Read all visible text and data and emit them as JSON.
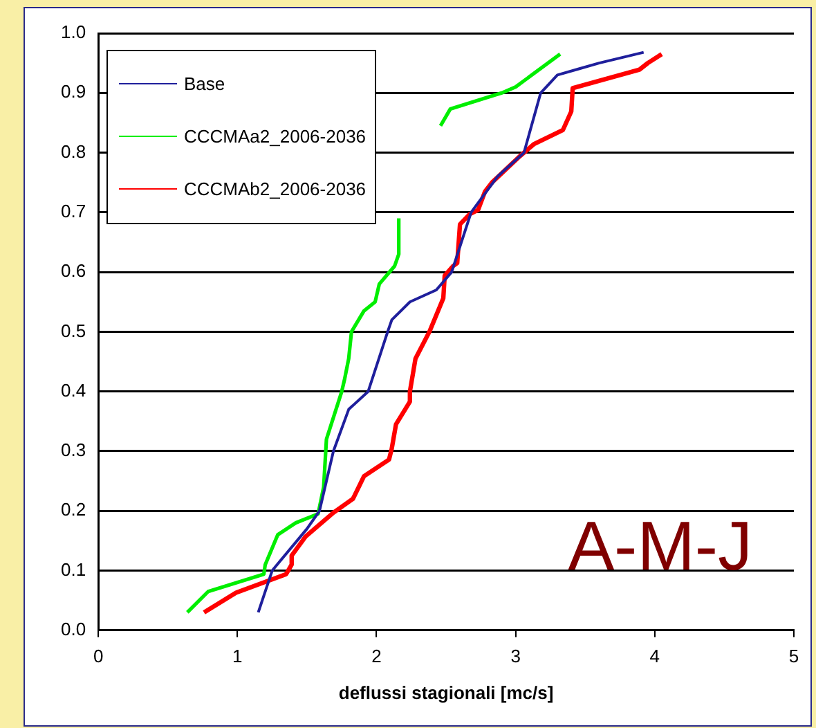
{
  "chart_data": {
    "type": "line",
    "xlabel": "deflussi stagionali [mc/s]",
    "xlim": [
      0,
      5
    ],
    "xticks": [
      0,
      1,
      2,
      3,
      4,
      5
    ],
    "ylim": [
      0,
      1
    ],
    "yticks": [
      {
        "value": 0,
        "label": "0.0"
      },
      {
        "value": 0.1,
        "label": "0.1"
      },
      {
        "value": 0.2,
        "label": "0.2"
      },
      {
        "value": 0.3,
        "label": "0.3"
      },
      {
        "value": 0.4,
        "label": "0.4"
      },
      {
        "value": 0.5,
        "label": "0.5"
      },
      {
        "value": 0.6,
        "label": "0.6"
      },
      {
        "value": 0.7,
        "label": "0.7"
      },
      {
        "value": 0.8,
        "label": "0.8"
      },
      {
        "value": 0.9,
        "label": "0.9"
      },
      {
        "value": 1,
        "label": "1.0"
      }
    ],
    "grid": "y",
    "legend": "top left",
    "marker": "none",
    "line_style": "solid",
    "annotations": [
      "A-M-J"
    ],
    "series": [
      {
        "name": "Base",
        "color": "#1f1f9c",
        "x": [
          1.15,
          1.25,
          1.5,
          1.59,
          1.69,
          1.8,
          1.94,
          2.08,
          2.11,
          2.24,
          2.43,
          2.54,
          2.68,
          2.87,
          3.06,
          3.18,
          3.3,
          3.45,
          3.6,
          3.92
        ],
        "values": [
          0.03,
          0.1,
          0.17,
          0.2,
          0.3,
          0.37,
          0.4,
          0.5,
          0.52,
          0.55,
          0.57,
          0.6,
          0.7,
          0.76,
          0.8,
          0.9,
          0.93,
          0.94,
          0.95,
          0.968
        ]
      },
      {
        "name": "CCCMAa2_2006-2036",
        "color": "#00ee00",
        "x": [
          0.64,
          0.79,
          1.19,
          1.2,
          1.29,
          1.42,
          1.58,
          1.62,
          1.64,
          1.75,
          1.77,
          1.8,
          1.82,
          1.91,
          1.99,
          2.02,
          2.13,
          2.16,
          2.16,
          null,
          2.46,
          2.53,
          2.9,
          3.0,
          3.32
        ],
        "values": [
          0.03,
          0.065,
          0.094,
          0.11,
          0.16,
          0.18,
          0.195,
          0.24,
          0.32,
          0.4,
          0.42,
          0.455,
          0.5,
          0.535,
          0.55,
          0.58,
          0.61,
          0.63,
          0.69,
          null,
          0.845,
          0.873,
          0.9,
          0.91,
          0.965
        ]
      },
      {
        "name": "CCCMAb2_2006-2036",
        "color": "#ff0000",
        "x": [
          0.76,
          0.99,
          1.35,
          1.39,
          1.39,
          1.49,
          1.69,
          1.83,
          1.91,
          2.09,
          2.11,
          2.14,
          2.24,
          2.24,
          2.28,
          2.38,
          2.48,
          2.49,
          2.55,
          2.58,
          2.6,
          2.67,
          2.73,
          2.78,
          2.83,
          3.03,
          3.13,
          3.34,
          3.4,
          3.41,
          3.89,
          3.95,
          4.05
        ],
        "values": [
          0.03,
          0.063,
          0.094,
          0.11,
          0.125,
          0.157,
          0.197,
          0.22,
          0.258,
          0.286,
          0.305,
          0.345,
          0.383,
          0.4,
          0.455,
          0.5,
          0.556,
          0.594,
          0.61,
          0.615,
          0.68,
          0.697,
          0.704,
          0.735,
          0.75,
          0.794,
          0.814,
          0.838,
          0.869,
          0.908,
          0.939,
          0.95,
          0.965
        ]
      }
    ]
  }
}
